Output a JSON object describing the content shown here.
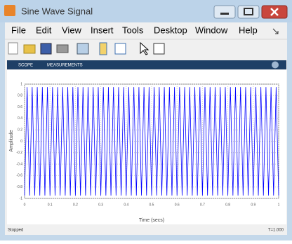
{
  "window": {
    "title": "Sine Wave Signal"
  },
  "menu": [
    "File",
    "Edit",
    "View",
    "Insert",
    "Tools",
    "Desktop",
    "Window",
    "Help"
  ],
  "tabs": [
    "SCOPE",
    "MEASUREMENTS"
  ],
  "status": {
    "left": "Stopped",
    "right": "T=1.000"
  },
  "chart_data": {
    "type": "line",
    "xlabel": "Time (secs)",
    "ylabel": "Amplitude",
    "color": "#0000ff",
    "grid": true,
    "xlim": [
      0,
      1
    ],
    "ylim": [
      -1,
      1
    ],
    "xticks": [
      0,
      0.1,
      0.2,
      0.3,
      0.4,
      0.5,
      0.6,
      0.7,
      0.8,
      0.9,
      1
    ],
    "yticks": [
      -1,
      -0.8,
      -0.6,
      -0.4,
      -0.2,
      0,
      0.2,
      0.4,
      0.6,
      0.8,
      1
    ],
    "x": [
      0,
      0.01,
      0.02,
      0.03,
      0.04,
      0.05,
      0.06,
      0.07,
      0.08,
      0.09,
      0.1,
      0.11,
      0.12,
      0.13,
      0.14,
      0.15,
      0.16,
      0.17,
      0.18,
      0.19,
      0.2,
      0.21,
      0.22,
      0.23,
      0.24,
      0.25,
      0.26,
      0.27,
      0.28,
      0.29,
      0.3,
      0.31,
      0.32,
      0.33,
      0.34,
      0.35,
      0.36,
      0.37,
      0.38,
      0.39,
      0.4,
      0.41,
      0.42,
      0.43,
      0.44,
      0.45,
      0.46,
      0.47,
      0.48,
      0.49,
      0.5,
      0.51,
      0.52,
      0.53,
      0.54,
      0.55,
      0.56,
      0.57,
      0.58,
      0.59,
      0.6,
      0.61,
      0.62,
      0.63,
      0.64,
      0.65,
      0.66,
      0.67,
      0.68,
      0.69,
      0.7,
      0.71,
      0.72,
      0.73,
      0.74,
      0.75,
      0.76,
      0.77,
      0.78,
      0.79,
      0.8,
      0.81,
      0.82,
      0.83,
      0.84,
      0.85,
      0.86,
      0.87,
      0.88,
      0.89,
      0.9,
      0.91,
      0.92,
      0.93,
      0.94,
      0.95,
      0.96,
      0.97,
      0.98,
      0.99,
      1
    ],
    "values": [
      -0.95,
      0.95,
      -0.95,
      0.95,
      -0.95,
      0.95,
      -0.95,
      0.95,
      -0.95,
      0.95,
      -0.95,
      0.95,
      -0.95,
      0.95,
      -0.95,
      0.95,
      -0.95,
      0.95,
      -0.95,
      0.95,
      -0.95,
      0.95,
      -0.95,
      0.95,
      -0.95,
      0.95,
      -0.95,
      0.95,
      -0.95,
      0.95,
      -0.95,
      0.95,
      -0.95,
      0.95,
      -0.95,
      0.95,
      -0.95,
      0.95,
      -0.95,
      0.95,
      -0.95,
      0.95,
      -0.95,
      0.95,
      -0.95,
      0.95,
      -0.95,
      0.95,
      -0.95,
      0.95,
      -0.95,
      0.95,
      -0.95,
      0.95,
      -0.95,
      0.95,
      -0.95,
      0.95,
      -0.95,
      0.95,
      -0.95,
      0.95,
      -0.95,
      0.95,
      -0.95,
      0.95,
      -0.95,
      0.95,
      -0.95,
      0.95,
      -0.95,
      0.95,
      -0.95,
      0.95,
      -0.95,
      0.95,
      -0.95,
      0.95,
      -0.95,
      0.95,
      -0.95,
      0.95,
      -0.95,
      0.95,
      -0.95,
      0.95,
      -0.95,
      0.95,
      -0.95,
      0.95,
      -0.95,
      0.95,
      -0.95,
      0.95,
      -0.95,
      0.95,
      -0.95,
      0.95,
      -0.95,
      0.95,
      -0.95
    ]
  }
}
